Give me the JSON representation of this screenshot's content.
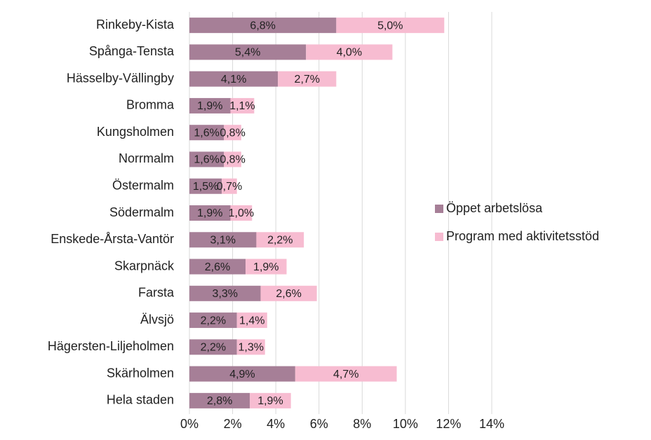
{
  "chart_data": {
    "type": "stacked-barh",
    "categories": [
      "Rinkeby-Kista",
      "Spånga-Tensta",
      "Hässelby-Vällingby",
      "Bromma",
      "Kungsholmen",
      "Norrmalm",
      "Östermalm",
      "Södermalm",
      "Enskede-Årsta-Vantör",
      "Skarpnäck",
      "Farsta",
      "Älvsjö",
      "Hägersten-Liljeholmen",
      "Skärholmen",
      "Hela staden"
    ],
    "series": [
      {
        "name": "Öppet arbetslösa",
        "color": "#a67f97",
        "values": [
          6.8,
          5.4,
          4.1,
          1.9,
          1.6,
          1.6,
          1.5,
          1.9,
          3.1,
          2.6,
          3.3,
          2.2,
          2.2,
          4.9,
          2.8
        ],
        "value_labels": [
          "6,8%",
          "5,4%",
          "4,1%",
          "1,9%",
          "1,6%",
          "1,6%",
          "1,5%",
          "1,9%",
          "3,1%",
          "2,6%",
          "3,3%",
          "2,2%",
          "2,2%",
          "4,9%",
          "2,8%"
        ]
      },
      {
        "name": "Program med aktivitetsstöd",
        "color": "#f7bcd1",
        "values": [
          5.0,
          4.0,
          2.7,
          1.1,
          0.8,
          0.8,
          0.7,
          1.0,
          2.2,
          1.9,
          2.6,
          1.4,
          1.3,
          4.7,
          1.9
        ],
        "value_labels": [
          "5,0%",
          "4,0%",
          "2,7%",
          "1,1%",
          "0,8%",
          "0,8%",
          "0,7%",
          "1,0%",
          "2,2%",
          "1,9%",
          "2,6%",
          "1,4%",
          "1,3%",
          "4,7%",
          "1,9%"
        ]
      }
    ],
    "xlim": [
      0,
      14
    ],
    "xticks": [
      {
        "value": 0,
        "label": "0%"
      },
      {
        "value": 2,
        "label": "2%"
      },
      {
        "value": 4,
        "label": "4%"
      },
      {
        "value": 6,
        "label": "6%"
      },
      {
        "value": 8,
        "label": "8%"
      },
      {
        "value": 10,
        "label": "10%"
      },
      {
        "value": 12,
        "label": "12%"
      },
      {
        "value": 14,
        "label": "14%"
      }
    ],
    "grid": true,
    "legend": "right"
  }
}
